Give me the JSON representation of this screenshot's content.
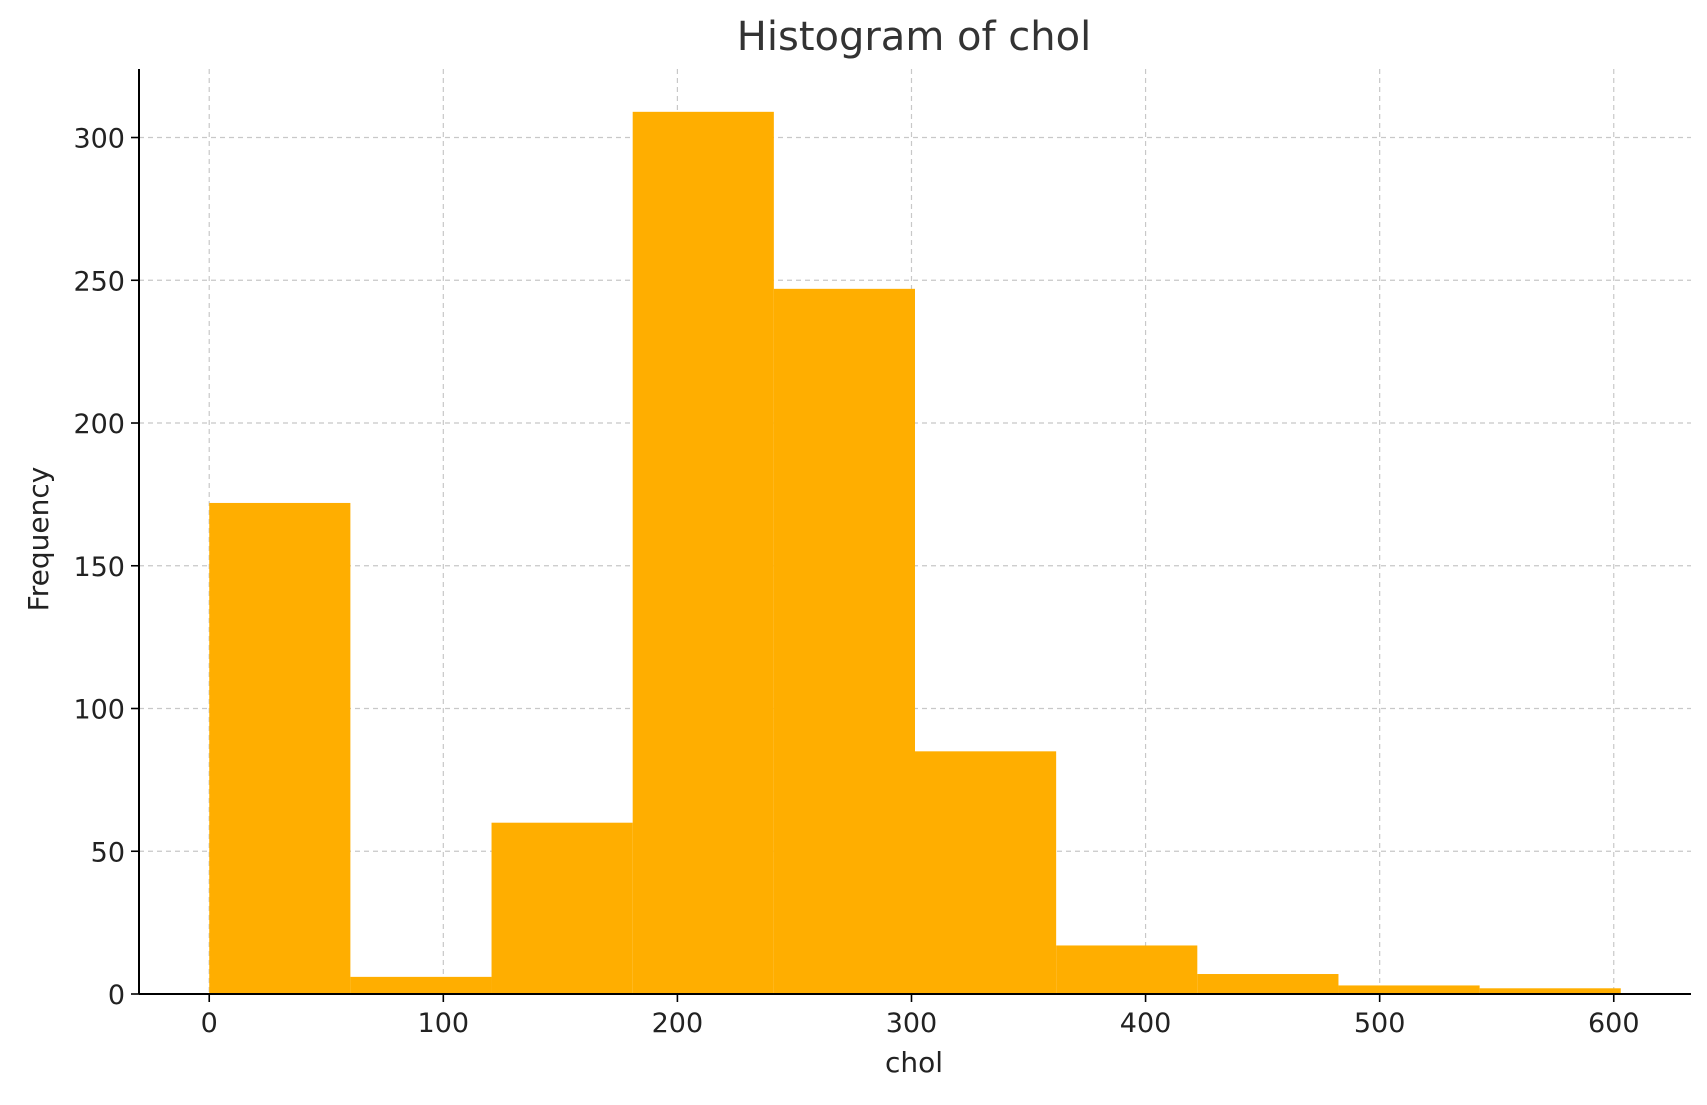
{
  "chart_data": {
    "type": "bar",
    "subtype": "histogram",
    "title": "Histogram of chol",
    "xlabel": "chol",
    "ylabel": "Frequency",
    "bins": [
      {
        "start": 0.0,
        "end": 60.3,
        "count": 172
      },
      {
        "start": 60.3,
        "end": 120.6,
        "count": 6
      },
      {
        "start": 120.6,
        "end": 180.9,
        "count": 60
      },
      {
        "start": 180.9,
        "end": 241.2,
        "count": 309
      },
      {
        "start": 241.2,
        "end": 301.5,
        "count": 247
      },
      {
        "start": 301.5,
        "end": 361.8,
        "count": 85
      },
      {
        "start": 361.8,
        "end": 422.1,
        "count": 17
      },
      {
        "start": 422.1,
        "end": 482.4,
        "count": 7
      },
      {
        "start": 482.4,
        "end": 542.7,
        "count": 3
      },
      {
        "start": 542.7,
        "end": 603.0,
        "count": 2
      }
    ],
    "xlim": [
      -30,
      633
    ],
    "ylim": [
      0,
      324
    ],
    "xticks": [
      0,
      100,
      200,
      300,
      400,
      500,
      600
    ],
    "yticks": [
      0,
      50,
      100,
      150,
      200,
      250,
      300
    ],
    "grid": true,
    "bar_color": "#FFAE00",
    "grid_color": "#c8c8c8",
    "axis_color": "#000000",
    "title_color": "#333333"
  }
}
